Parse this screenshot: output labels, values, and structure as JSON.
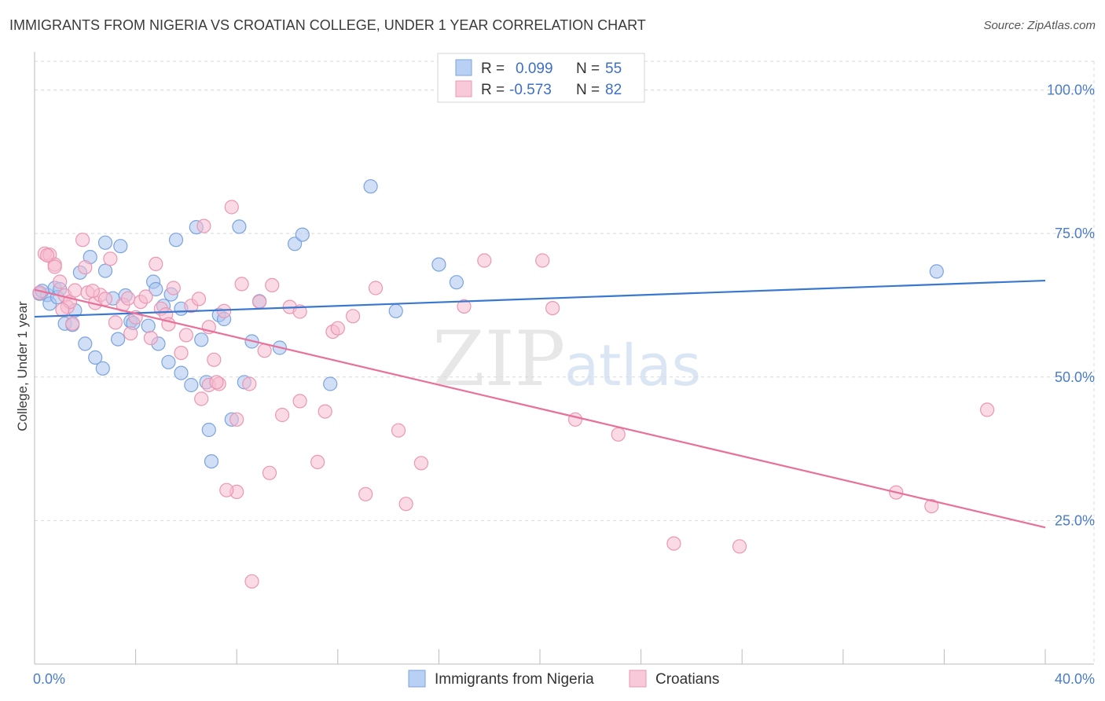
{
  "title": "IMMIGRANTS FROM NIGERIA VS CROATIAN COLLEGE, UNDER 1 YEAR CORRELATION CHART",
  "source": "Source: ZipAtlas.com",
  "watermark": {
    "zip": "ZIP",
    "atlas": "atlas"
  },
  "legend": {
    "r_label": "R =",
    "n_label": "N =",
    "rows": [
      {
        "r": "0.099",
        "n": "55"
      },
      {
        "r": "-0.573",
        "n": "82"
      }
    ]
  },
  "colors": {
    "blue_fill": "#a9c4ee",
    "blue_stroke": "#7ba3df",
    "blue_line": "#3a78cf",
    "pink_fill": "#f6bcd0",
    "pink_stroke": "#eb96b4",
    "pink_line": "#e8709a",
    "grid": "#d9d9d9",
    "tick_text": "#4a7cc7"
  },
  "chart_data": {
    "type": "scatter",
    "xlabel": "",
    "ylabel": "College, Under 1 year",
    "xlim": [
      0,
      40
    ],
    "ylim": [
      0,
      105
    ],
    "x_tick_labels": [
      "0.0%",
      "40.0%"
    ],
    "y_ticks": [
      25,
      50,
      75,
      100
    ],
    "y_tick_labels": [
      "25.0%",
      "50.0%",
      "75.0%",
      "100.0%"
    ],
    "grid": true,
    "legend_position": "top-center",
    "series": [
      {
        "name": "Immigrants from Nigeria",
        "color": "#a9c4ee",
        "trend": {
          "x": [
            0,
            40
          ],
          "y": [
            60.5,
            66.8
          ]
        },
        "points": [
          [
            0.2,
            64.5
          ],
          [
            0.5,
            64.3
          ],
          [
            0.6,
            62.8
          ],
          [
            0.8,
            65.5
          ],
          [
            0.9,
            63.9
          ],
          [
            1.2,
            59.3
          ],
          [
            1.5,
            59.1
          ],
          [
            1.6,
            61.6
          ],
          [
            1.8,
            68.2
          ],
          [
            2.0,
            55.8
          ],
          [
            2.2,
            70.9
          ],
          [
            2.8,
            73.4
          ],
          [
            2.8,
            68.5
          ],
          [
            3.1,
            63.7
          ],
          [
            3.4,
            72.8
          ],
          [
            3.6,
            64.2
          ],
          [
            3.8,
            59.7
          ],
          [
            3.9,
            59.4
          ],
          [
            4.5,
            58.9
          ],
          [
            4.7,
            66.6
          ],
          [
            4.9,
            55.8
          ],
          [
            5.1,
            62.4
          ],
          [
            5.4,
            64.4
          ],
          [
            5.6,
            73.9
          ],
          [
            5.8,
            61.9
          ],
          [
            6.4,
            76.1
          ],
          [
            6.6,
            56.5
          ],
          [
            6.8,
            49.1
          ],
          [
            7.3,
            60.8
          ],
          [
            7.5,
            60.1
          ],
          [
            8.1,
            76.2
          ],
          [
            8.6,
            56.2
          ],
          [
            8.9,
            63.2
          ],
          [
            9.7,
            55.1
          ],
          [
            10.3,
            73.2
          ],
          [
            10.6,
            74.8
          ],
          [
            11.7,
            48.8
          ],
          [
            13.3,
            83.2
          ],
          [
            14.3,
            61.5
          ],
          [
            16.0,
            69.6
          ],
          [
            16.7,
            66.5
          ],
          [
            35.7,
            68.4
          ],
          [
            0.3,
            65.0
          ],
          [
            1.0,
            65.3
          ],
          [
            2.4,
            53.4
          ],
          [
            2.7,
            51.5
          ],
          [
            3.3,
            56.6
          ],
          [
            5.3,
            52.6
          ],
          [
            5.8,
            50.7
          ],
          [
            6.2,
            48.6
          ],
          [
            7.0,
            35.3
          ],
          [
            6.9,
            40.8
          ],
          [
            7.8,
            42.6
          ],
          [
            8.3,
            49.1
          ],
          [
            4.8,
            65.3
          ]
        ]
      },
      {
        "name": "Croatians",
        "color": "#f6bcd0",
        "trend": {
          "x": [
            0,
            40
          ],
          "y": [
            65.2,
            23.8
          ]
        },
        "points": [
          [
            0.2,
            64.7
          ],
          [
            0.4,
            71.5
          ],
          [
            0.6,
            71.3
          ],
          [
            0.8,
            69.6
          ],
          [
            1.0,
            66.6
          ],
          [
            1.2,
            64.2
          ],
          [
            1.3,
            62.2
          ],
          [
            1.4,
            63.1
          ],
          [
            1.5,
            59.3
          ],
          [
            1.6,
            65.1
          ],
          [
            1.9,
            73.9
          ],
          [
            2.0,
            69.1
          ],
          [
            2.1,
            64.7
          ],
          [
            2.4,
            62.9
          ],
          [
            2.6,
            64.3
          ],
          [
            2.8,
            63.6
          ],
          [
            3.0,
            70.6
          ],
          [
            3.2,
            59.5
          ],
          [
            3.5,
            62.6
          ],
          [
            3.8,
            57.6
          ],
          [
            4.0,
            60.4
          ],
          [
            4.2,
            63.1
          ],
          [
            4.4,
            64.0
          ],
          [
            4.6,
            56.8
          ],
          [
            4.8,
            69.7
          ],
          [
            5.0,
            61.9
          ],
          [
            5.2,
            60.9
          ],
          [
            5.5,
            65.5
          ],
          [
            5.8,
            54.2
          ],
          [
            6.0,
            57.3
          ],
          [
            6.2,
            62.4
          ],
          [
            6.5,
            63.6
          ],
          [
            6.7,
            76.3
          ],
          [
            6.9,
            48.6
          ],
          [
            7.1,
            53.0
          ],
          [
            7.3,
            48.8
          ],
          [
            7.5,
            61.5
          ],
          [
            7.8,
            79.6
          ],
          [
            8.0,
            42.6
          ],
          [
            8.2,
            66.2
          ],
          [
            8.5,
            48.8
          ],
          [
            8.9,
            63.1
          ],
          [
            9.1,
            54.6
          ],
          [
            9.4,
            66.0
          ],
          [
            9.8,
            43.4
          ],
          [
            10.1,
            62.2
          ],
          [
            10.5,
            61.4
          ],
          [
            11.2,
            35.2
          ],
          [
            11.5,
            44.0
          ],
          [
            11.8,
            57.9
          ],
          [
            12.0,
            58.5
          ],
          [
            12.6,
            60.6
          ],
          [
            13.1,
            29.6
          ],
          [
            13.5,
            65.5
          ],
          [
            14.4,
            40.7
          ],
          [
            14.7,
            27.9
          ],
          [
            15.3,
            35.0
          ],
          [
            17.0,
            62.3
          ],
          [
            17.8,
            70.3
          ],
          [
            20.1,
            70.3
          ],
          [
            20.5,
            62.0
          ],
          [
            21.4,
            42.6
          ],
          [
            23.1,
            40.0
          ],
          [
            25.3,
            21.0
          ],
          [
            27.9,
            20.5
          ],
          [
            34.1,
            29.9
          ],
          [
            35.5,
            27.5
          ],
          [
            37.7,
            44.3
          ],
          [
            0.5,
            71.2
          ],
          [
            0.8,
            69.2
          ],
          [
            1.1,
            61.7
          ],
          [
            2.3,
            65.0
          ],
          [
            3.7,
            63.7
          ],
          [
            5.3,
            59.2
          ],
          [
            6.9,
            58.7
          ],
          [
            7.2,
            49.1
          ],
          [
            8.0,
            30.0
          ],
          [
            8.6,
            14.4
          ],
          [
            9.3,
            33.3
          ],
          [
            6.6,
            46.2
          ],
          [
            7.6,
            30.3
          ],
          [
            10.5,
            45.8
          ]
        ]
      }
    ]
  }
}
